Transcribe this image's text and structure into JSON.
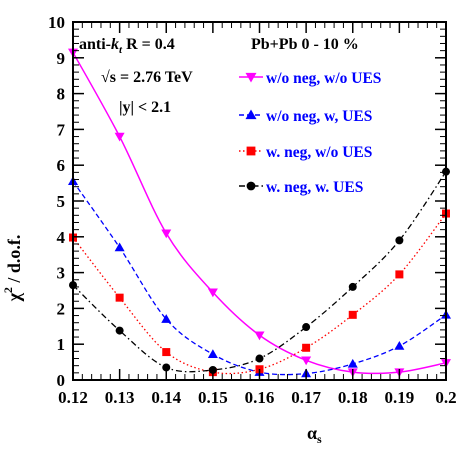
{
  "chart_data": {
    "type": "scatter",
    "xlabel": "α_s",
    "xlabel_main": "α",
    "xlabel_sub": "s",
    "ylabel": "χ² / d.o.f.",
    "ylabel_base": "χ",
    "ylabel_sup": "2",
    "ylabel_rest": " / d.o.f.",
    "xlim": [
      0.12,
      0.2
    ],
    "ylim": [
      0,
      10
    ],
    "xticks": [
      "0.12",
      "0.13",
      "0.14",
      "0.15",
      "0.16",
      "0.17",
      "0.18",
      "0.19",
      "0.2"
    ],
    "yticks": [
      "0",
      "1",
      "2",
      "3",
      "4",
      "5",
      "6",
      "7",
      "8",
      "9",
      "10"
    ],
    "annotations": {
      "algo_prefix": "anti-",
      "algo_k": "k",
      "algo_sub": "t",
      "algo_suffix": " R = 0.4",
      "energy": "√s = 2.76 TeV",
      "rapidity": "|y| < 2.1",
      "system": "Pb+Pb 0 - 10 %"
    },
    "legend_position": "top-right",
    "series": [
      {
        "name": "w/o neg, w/o UES",
        "color": "#ff00ff",
        "marker": "triangle-down",
        "line": "solid",
        "x": [
          0.12,
          0.13,
          0.14,
          0.15,
          0.16,
          0.17,
          0.18,
          0.19,
          0.2
        ],
        "y": [
          9.15,
          6.8,
          4.1,
          2.45,
          1.25,
          0.55,
          0.22,
          0.22,
          0.48
        ]
      },
      {
        "name": "w/o neg, w, UES",
        "color": "#0000ff",
        "marker": "triangle-up",
        "line": "dashed",
        "x": [
          0.12,
          0.13,
          0.14,
          0.15,
          0.16,
          0.17,
          0.18,
          0.19,
          0.2
        ],
        "y": [
          5.55,
          3.7,
          1.7,
          0.72,
          0.22,
          0.18,
          0.45,
          0.95,
          1.82
        ]
      },
      {
        "name": "w. neg, w/o UES",
        "color": "#ff0000",
        "marker": "square",
        "line": "dotted",
        "x": [
          0.12,
          0.13,
          0.14,
          0.15,
          0.16,
          0.17,
          0.18,
          0.19,
          0.2
        ],
        "y": [
          3.98,
          2.3,
          0.78,
          0.22,
          0.3,
          0.9,
          1.82,
          2.95,
          4.65
        ]
      },
      {
        "name": "w. neg, w. UES",
        "color": "#000000",
        "marker": "circle",
        "line": "dashdot",
        "x": [
          0.12,
          0.13,
          0.14,
          0.15,
          0.16,
          0.17,
          0.18,
          0.19,
          0.2
        ],
        "y": [
          2.65,
          1.38,
          0.35,
          0.28,
          0.6,
          1.48,
          2.6,
          3.9,
          5.82
        ]
      }
    ]
  }
}
